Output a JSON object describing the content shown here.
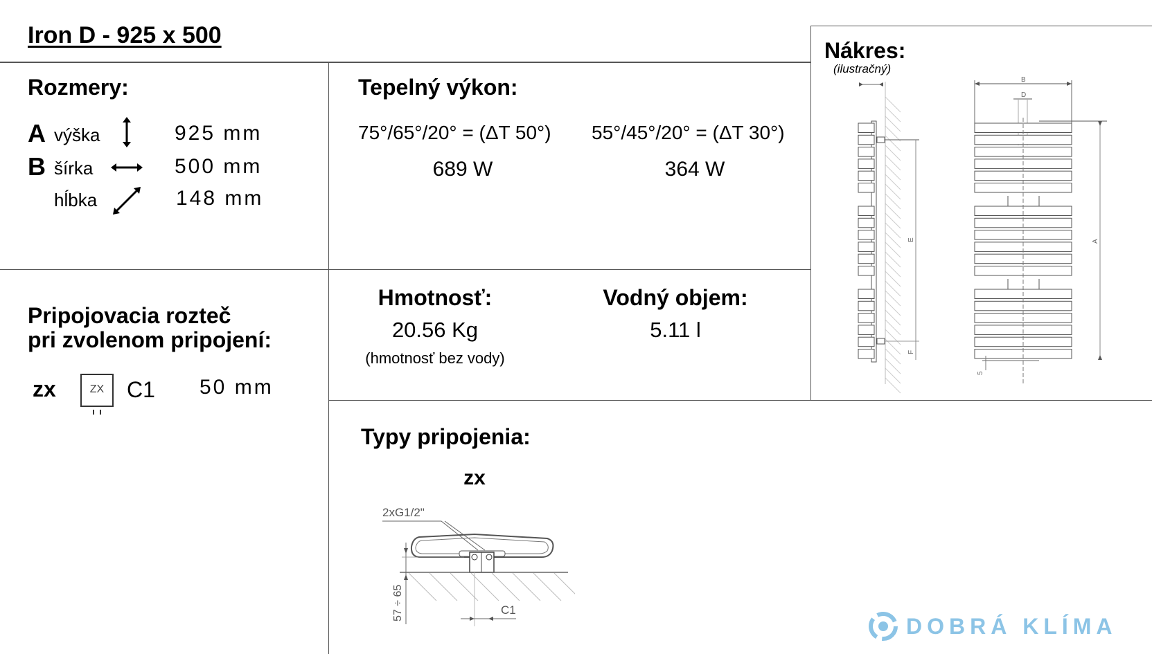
{
  "title": "Iron D - 925 x 500",
  "dimensions": {
    "heading": "Rozmery:",
    "rows": [
      {
        "letter": "A",
        "label": "výška",
        "icon": "vertical-arrow-icon",
        "value": "925 mm"
      },
      {
        "letter": "B",
        "label": "šírka",
        "icon": "horizontal-arrow-icon",
        "value": "500 mm"
      },
      {
        "letter": "",
        "label": "hĺbka",
        "icon": "diagonal-arrow-icon",
        "value": "148 mm"
      }
    ]
  },
  "heat_output": {
    "heading": "Tepelný výkon:",
    "columns": [
      {
        "condition": "75°/65°/20° = (ΔT 50°)",
        "value": "689 W"
      },
      {
        "condition": "55°/45°/20° = (ΔT 30°)",
        "value": "364 W"
      }
    ]
  },
  "weight": {
    "heading": "Hmotnosť:",
    "value": "20.56 Kg",
    "note": "(hmotnosť bez vody)"
  },
  "water_volume": {
    "heading": "Vodný objem:",
    "value": "5.11 l"
  },
  "spacing": {
    "heading_line1": "Pripojovacia rozteč",
    "heading_line2": "pri zvolenom pripojení:",
    "type": "zx",
    "icon_label": "ZX",
    "dimension": "C1",
    "value": "50 mm"
  },
  "connection_types": {
    "heading": "Typy pripojenia:",
    "type": "zx",
    "diagram_labels": {
      "thread": "2xG1/2\"",
      "depth": "57 ÷ 65",
      "spacing": "C1"
    }
  },
  "drawing": {
    "heading": "Nákres:",
    "subheading": "(ilustračný)",
    "labels": {
      "B": "B",
      "D": "D",
      "A": "A",
      "E": "E",
      "F": "F",
      "five": "5"
    }
  },
  "logo": {
    "text": "DOBRÁ KLÍMA",
    "color": "#8cc4e6"
  }
}
